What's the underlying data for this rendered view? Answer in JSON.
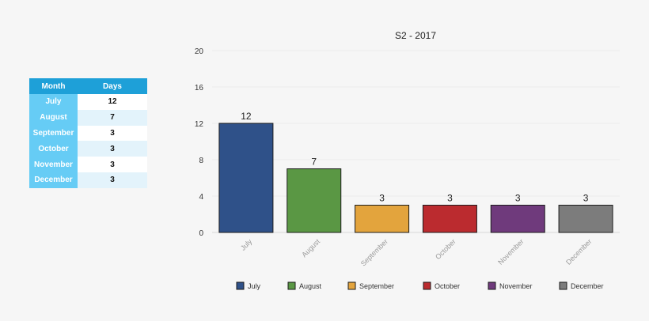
{
  "table": {
    "headers": [
      "Month",
      "Days"
    ],
    "rows": [
      {
        "month": "July",
        "days": "12"
      },
      {
        "month": "August",
        "days": "7"
      },
      {
        "month": "September",
        "days": "3"
      },
      {
        "month": "October",
        "days": "3"
      },
      {
        "month": "November",
        "days": "3"
      },
      {
        "month": "December",
        "days": "3"
      }
    ]
  },
  "chart_data": {
    "type": "bar",
    "title": "S2 - 2017",
    "xlabel": "",
    "ylabel": "",
    "categories": [
      "July",
      "August",
      "September",
      "October",
      "November",
      "December"
    ],
    "values": [
      12,
      7,
      3,
      3,
      3,
      3
    ],
    "colors": [
      "#2f5189",
      "#5a9744",
      "#e3a43d",
      "#bb2b2f",
      "#6f3a7c",
      "#7c7c7c"
    ],
    "ylim": [
      0,
      20
    ],
    "yticks": [
      0,
      4,
      8,
      12,
      16,
      20
    ],
    "grid": true,
    "legend_position": "bottom",
    "x_tick_rotation": 45
  }
}
